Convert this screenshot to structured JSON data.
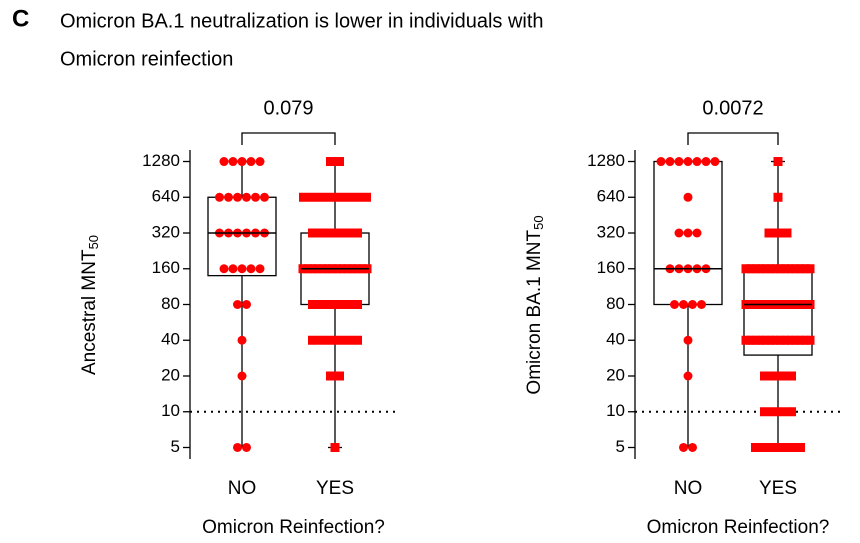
{
  "panel_label": "C",
  "title_lines": [
    "Omicron BA.1 neutralization is lower in individuals with",
    "Omicron reinfection"
  ],
  "chart_data": [
    {
      "type": "box",
      "ylabel": "Ancestral MNT",
      "ylabel_sub": "50",
      "xlabel": "Omicron Reinfection?",
      "categories": [
        "NO",
        "YES"
      ],
      "markers": [
        "circle",
        "square"
      ],
      "color": "#ff0000",
      "log_base": 2,
      "ylim": [
        4,
        1600
      ],
      "yticks": [
        5,
        10,
        20,
        40,
        80,
        160,
        320,
        640,
        1280
      ],
      "threshold": 10,
      "p_value": "0.079",
      "boxes": [
        {
          "min": 5,
          "q1": 140,
          "median": 320,
          "q3": 640,
          "max": 1280
        },
        {
          "min": 5,
          "q1": 80,
          "median": 160,
          "q3": 320,
          "max": 1280
        }
      ],
      "points": [
        [
          1280,
          1280,
          1280,
          1280,
          1280,
          640,
          640,
          640,
          640,
          640,
          640,
          320,
          320,
          320,
          320,
          320,
          320,
          160,
          160,
          160,
          160,
          160,
          80,
          80,
          40,
          20,
          5,
          5
        ],
        [
          1280,
          1280,
          640,
          640,
          640,
          640,
          640,
          640,
          640,
          640,
          320,
          320,
          320,
          320,
          320,
          320,
          160,
          160,
          160,
          160,
          160,
          160,
          160,
          160,
          160,
          160,
          160,
          160,
          160,
          160,
          80,
          80,
          80,
          80,
          80,
          80,
          40,
          40,
          40,
          40,
          40,
          40,
          20,
          20,
          5
        ]
      ]
    },
    {
      "type": "box",
      "ylabel": "Omicron BA.1 MNT",
      "ylabel_sub": "50",
      "xlabel": "Omicron Reinfection?",
      "categories": [
        "NO",
        "YES"
      ],
      "markers": [
        "circle",
        "square"
      ],
      "color": "#ff0000",
      "log_base": 2,
      "ylim": [
        4,
        1600
      ],
      "yticks": [
        5,
        10,
        20,
        40,
        80,
        160,
        320,
        640,
        1280
      ],
      "threshold": 10,
      "p_value": "0.0072",
      "boxes": [
        {
          "min": 5,
          "q1": 80,
          "median": 160,
          "q3": 1280,
          "max": 1280
        },
        {
          "min": 5,
          "q1": 30,
          "median": 80,
          "q3": 160,
          "max": 1280
        }
      ],
      "points": [
        [
          1280,
          1280,
          1280,
          1280,
          1280,
          1280,
          1280,
          640,
          320,
          320,
          320,
          160,
          160,
          160,
          160,
          160,
          80,
          80,
          80,
          80,
          40,
          20,
          5,
          5
        ],
        [
          1280,
          640,
          320,
          320,
          320,
          160,
          160,
          160,
          160,
          160,
          160,
          160,
          160,
          160,
          160,
          160,
          160,
          160,
          160,
          80,
          80,
          80,
          80,
          80,
          80,
          80,
          80,
          80,
          80,
          80,
          80,
          80,
          80,
          40,
          40,
          40,
          40,
          40,
          40,
          40,
          40,
          40,
          40,
          40,
          40,
          40,
          40,
          20,
          20,
          20,
          20,
          10,
          10,
          10,
          10,
          5,
          5,
          5,
          5,
          5,
          5
        ]
      ]
    }
  ]
}
